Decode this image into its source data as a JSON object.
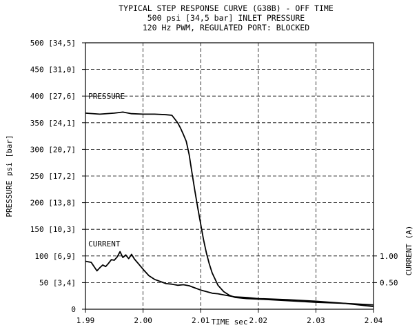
{
  "chart_data": {
    "type": "line",
    "title_lines": [
      "TYPICAL STEP RESPONSE CURVE (G38B) - OFF TIME",
      "500 psi [34,5 bar] INLET PRESSURE",
      "120 Hz PWM, REGULATED PORT: BLOCKED"
    ],
    "xlabel": "TIME sec",
    "ylabel": "PRESSURE psi [bar]",
    "ylabel_right": "CURRENT (A)",
    "xlim": [
      1.99,
      2.04
    ],
    "ylim": [
      0,
      500
    ],
    "grid": true,
    "x_ticks": [
      {
        "value": 1.99,
        "label": "1.99"
      },
      {
        "value": 2.0,
        "label": "2.00"
      },
      {
        "value": 2.01,
        "label": "2.01"
      },
      {
        "value": 2.02,
        "label": "2.02"
      },
      {
        "value": 2.03,
        "label": "2.03"
      },
      {
        "value": 2.04,
        "label": "2.04"
      }
    ],
    "y_ticks": [
      {
        "value": 0,
        "label": "0"
      },
      {
        "value": 50,
        "label": "50 [3,4]"
      },
      {
        "value": 100,
        "label": "100 [6,9]"
      },
      {
        "value": 150,
        "label": "150 [10,3]"
      },
      {
        "value": 200,
        "label": "200 [13,8]"
      },
      {
        "value": 250,
        "label": "250 [17,2]"
      },
      {
        "value": 300,
        "label": "300 [20,7]"
      },
      {
        "value": 350,
        "label": "350 [24,1]"
      },
      {
        "value": 400,
        "label": "400 [27,6]"
      },
      {
        "value": 450,
        "label": "450 [31,0]"
      },
      {
        "value": 500,
        "label": "500 [34,5]"
      }
    ],
    "y_right_ticks": [
      {
        "value": 100,
        "label": "1.00"
      },
      {
        "value": 50,
        "label": "0.50"
      }
    ],
    "series": [
      {
        "name": "PRESSURE",
        "x": [
          1.99,
          1.9925,
          1.995,
          1.9965,
          1.998,
          2.0,
          2.002,
          2.004,
          2.005,
          2.006,
          2.0065,
          2.007,
          2.0075,
          2.008,
          2.0085,
          2.009,
          2.0095,
          2.01,
          2.0105,
          2.011,
          2.0115,
          2.012,
          2.013,
          2.014,
          2.015,
          2.016,
          2.018,
          2.02,
          2.025,
          2.03,
          2.035,
          2.04
        ],
        "y": [
          368,
          366,
          368,
          370,
          367,
          366,
          366,
          365,
          364,
          350,
          340,
          328,
          315,
          290,
          255,
          222,
          190,
          160,
          130,
          105,
          85,
          68,
          45,
          33,
          26,
          22,
          20,
          19,
          16,
          13,
          11,
          8
        ]
      },
      {
        "name": "CURRENT",
        "x": [
          1.99,
          1.991,
          1.9915,
          1.992,
          1.9925,
          1.993,
          1.9935,
          1.994,
          1.9945,
          1.995,
          1.9955,
          1.996,
          1.9965,
          1.997,
          1.9975,
          1.998,
          1.9985,
          1.999,
          2.0,
          2.001,
          2.002,
          2.003,
          2.004,
          2.005,
          2.006,
          2.007,
          2.008,
          2.009,
          2.01,
          2.011,
          2.012,
          2.013,
          2.014,
          2.015,
          2.016,
          2.018,
          2.02,
          2.025,
          2.03,
          2.035,
          2.04
        ],
        "y": [
          90,
          88,
          80,
          72,
          78,
          83,
          80,
          86,
          93,
          92,
          98,
          108,
          97,
          102,
          95,
          103,
          94,
          88,
          75,
          63,
          56,
          52,
          48,
          47,
          45,
          46,
          44,
          40,
          36,
          33,
          30,
          29,
          27,
          25,
          23,
          22,
          20,
          18,
          15,
          11,
          5
        ]
      }
    ],
    "annotations": [
      {
        "text": "PRESSURE",
        "x": 1.9905,
        "y": 395
      },
      {
        "text": "CURRENT",
        "x": 1.9905,
        "y": 118
      }
    ]
  }
}
